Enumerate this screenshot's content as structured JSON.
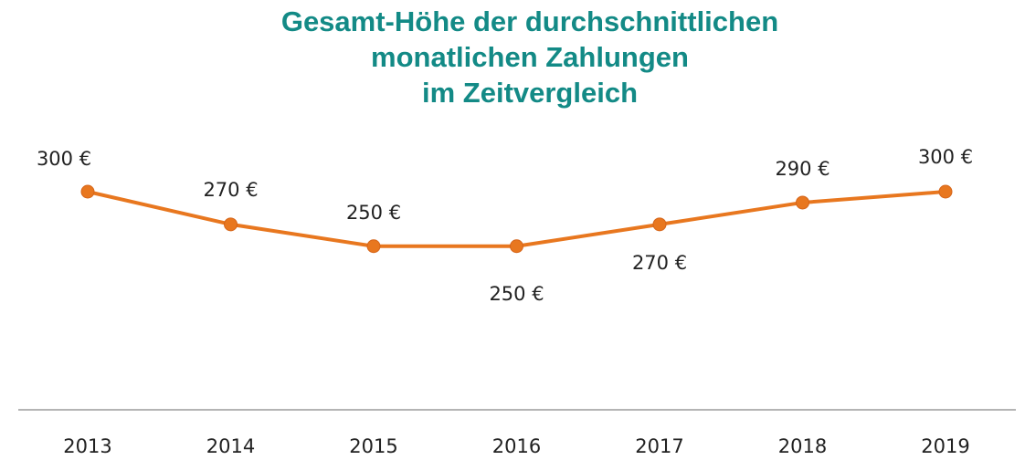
{
  "chart_data": {
    "type": "line",
    "title": "Gesamt-Höhe der durchschnittlichen\nmonatlichen Zahlungen\nim Zeitvergleich",
    "categories": [
      "2013",
      "2014",
      "2015",
      "2016",
      "2017",
      "2018",
      "2019"
    ],
    "series": [
      {
        "color": "#e8771f",
        "values": [
          300,
          270,
          250,
          250,
          270,
          290,
          300
        ],
        "value_labels": [
          "300 €",
          "270 €",
          "250 €",
          "250 €",
          "270 €",
          "290 €",
          "300 €"
        ]
      }
    ],
    "ylim": [
      100,
      300
    ]
  }
}
